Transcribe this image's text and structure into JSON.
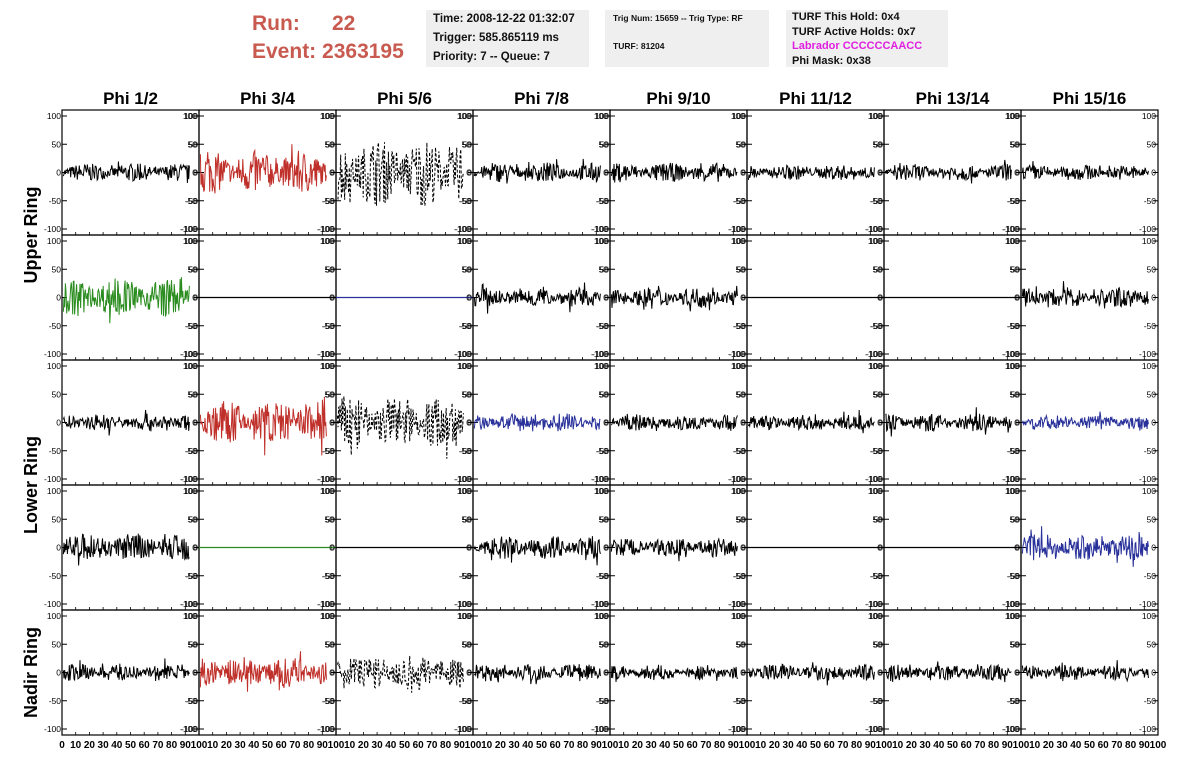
{
  "header": {
    "run_label": "Run:",
    "run_value": "22",
    "event_label": "Event:",
    "event_value": "2363195",
    "time_line": "Time: 2008-12-22 01:32:07",
    "trigger_line": "Trigger: 585.865119 ms",
    "priority_line": "Priority: 7 -- Queue: 7",
    "trig_line": "Trig Num: 15659 -- Trig Type: RF",
    "turf_line": "TURF: 81204",
    "turf_hold": "TURF This Hold: 0x4",
    "turf_active": "TURF Active Holds: 0x7",
    "labrador": "Labrador CCCCCCAACC",
    "phi_mask": "Phi Mask: 0x38"
  },
  "chart_data": {
    "type": "line",
    "column_titles": [
      "Phi 1/2",
      "Phi 3/4",
      "Phi 5/6",
      "Phi 7/8",
      "Phi 9/10",
      "Phi 11/12",
      "Phi 13/14",
      "Phi 15/16"
    ],
    "ring_titles": [
      "Upper Ring",
      "Lower Ring",
      "Nadir Ring"
    ],
    "xlim": [
      0,
      100
    ],
    "ylim": [
      -100,
      100
    ],
    "x_ticks": [
      0,
      10,
      20,
      30,
      40,
      50,
      60,
      70,
      80,
      90,
      100
    ],
    "y_ticks": [
      100,
      50,
      0,
      -50,
      -100
    ],
    "colors": {
      "black": "#000000",
      "red": "#c0302a",
      "green": "#2a8c1e",
      "blue": "#28309a"
    },
    "rows": [
      [
        {
          "color": "black",
          "amp": 14,
          "style": "solid"
        },
        {
          "color": "red",
          "amp": 34,
          "style": "solid"
        },
        {
          "color": "black",
          "amp": 52,
          "style": "dashed"
        },
        {
          "color": "black",
          "amp": 15,
          "style": "solid"
        },
        {
          "color": "black",
          "amp": 15,
          "style": "solid"
        },
        {
          "color": "black",
          "amp": 12,
          "style": "solid"
        },
        {
          "color": "black",
          "amp": 13,
          "style": "solid"
        },
        {
          "color": "black",
          "amp": 12,
          "style": "solid"
        }
      ],
      [
        {
          "color": "green",
          "amp": 30,
          "style": "solid"
        },
        {
          "color": "black",
          "amp": 0,
          "style": "flat"
        },
        {
          "color": "blue",
          "amp": 0,
          "style": "flat"
        },
        {
          "color": "black",
          "amp": 15,
          "style": "solid"
        },
        {
          "color": "black",
          "amp": 16,
          "style": "solid"
        },
        {
          "color": "black",
          "amp": 0,
          "style": "flat"
        },
        {
          "color": "black",
          "amp": 0,
          "style": "flat"
        },
        {
          "color": "black",
          "amp": 16,
          "style": "solid"
        }
      ],
      [
        {
          "color": "black",
          "amp": 14,
          "style": "solid"
        },
        {
          "color": "red",
          "amp": 34,
          "style": "solid"
        },
        {
          "color": "black",
          "amp": 42,
          "style": "dashed"
        },
        {
          "color": "blue",
          "amp": 14,
          "style": "solid"
        },
        {
          "color": "black",
          "amp": 13,
          "style": "solid"
        },
        {
          "color": "black",
          "amp": 12,
          "style": "solid"
        },
        {
          "color": "black",
          "amp": 14,
          "style": "solid"
        },
        {
          "color": "blue",
          "amp": 11,
          "style": "solid"
        }
      ],
      [
        {
          "color": "black",
          "amp": 22,
          "style": "solid"
        },
        {
          "color": "green",
          "amp": 0,
          "style": "flat"
        },
        {
          "color": "black",
          "amp": 0,
          "style": "flat"
        },
        {
          "color": "black",
          "amp": 18,
          "style": "solid"
        },
        {
          "color": "black",
          "amp": 15,
          "style": "solid"
        },
        {
          "color": "black",
          "amp": 0,
          "style": "flat"
        },
        {
          "color": "black",
          "amp": 0,
          "style": "flat"
        },
        {
          "color": "blue",
          "amp": 20,
          "style": "solid"
        }
      ],
      [
        {
          "color": "black",
          "amp": 14,
          "style": "solid"
        },
        {
          "color": "red",
          "amp": 24,
          "style": "solid"
        },
        {
          "color": "black",
          "amp": 30,
          "style": "dashed"
        },
        {
          "color": "black",
          "amp": 14,
          "style": "solid"
        },
        {
          "color": "black",
          "amp": 12,
          "style": "solid"
        },
        {
          "color": "black",
          "amp": 13,
          "style": "solid"
        },
        {
          "color": "black",
          "amp": 12,
          "style": "solid"
        },
        {
          "color": "black",
          "amp": 12,
          "style": "solid"
        }
      ]
    ]
  }
}
